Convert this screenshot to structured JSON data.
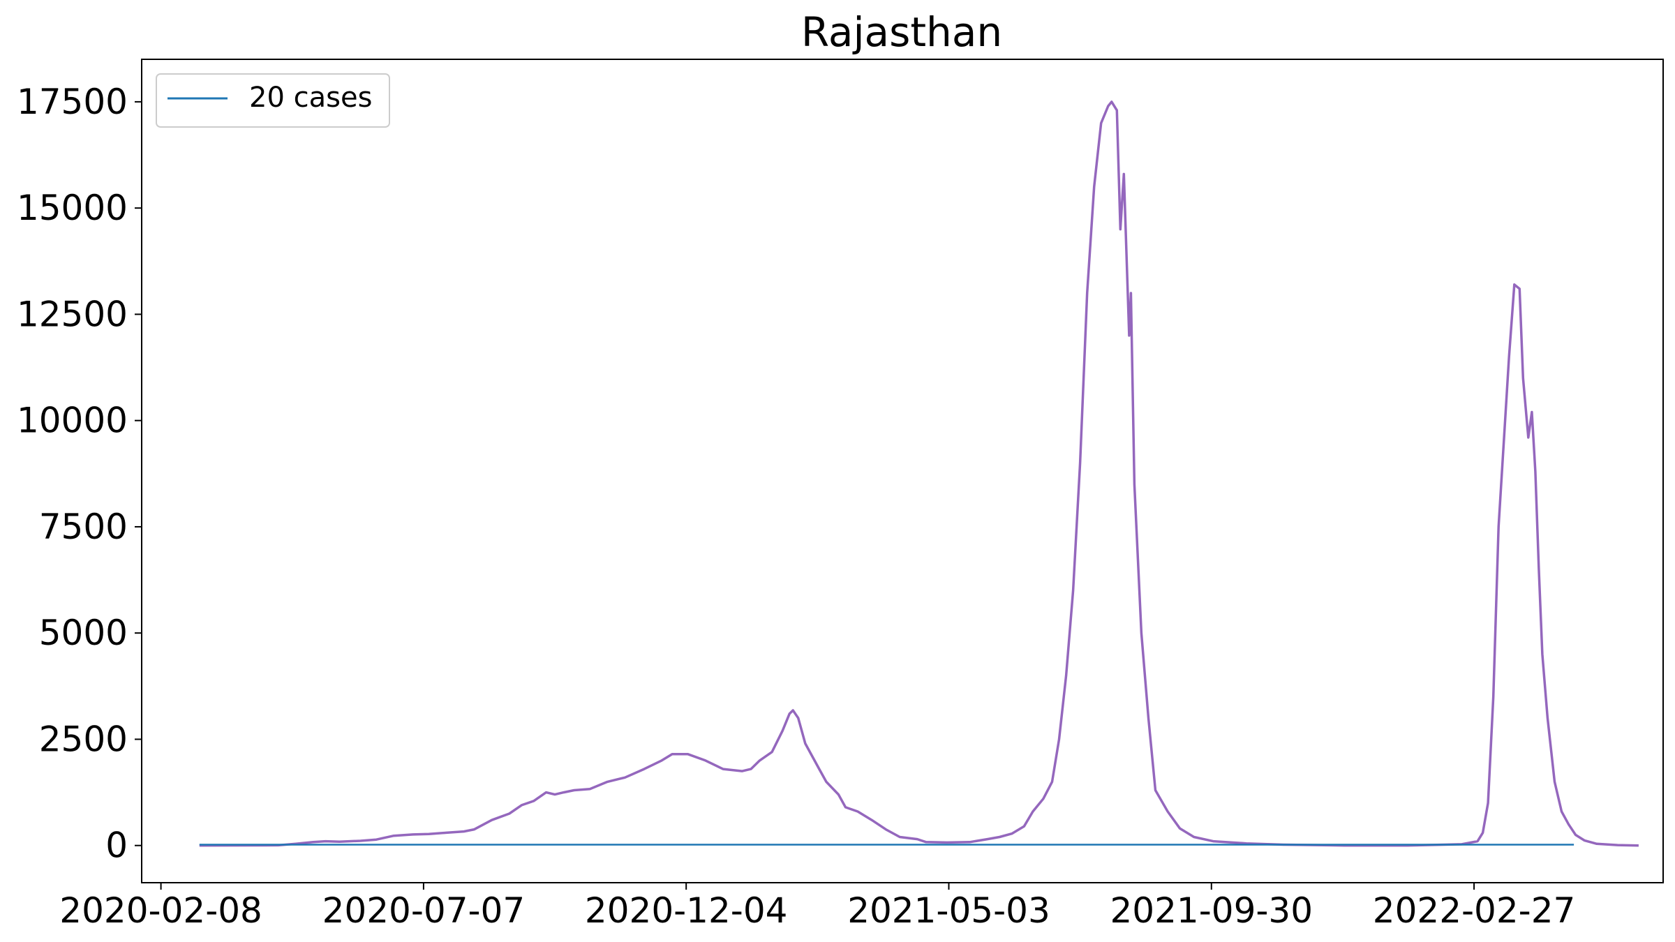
{
  "chart_data": {
    "type": "line",
    "title": "Rajasthan",
    "xlabel": "",
    "ylabel": "",
    "x_tick_labels": [
      "2020-02-08",
      "2020-07-07",
      "2020-12-04",
      "2021-05-03",
      "2021-09-30",
      "2022-02-27"
    ],
    "y_tick_labels": [
      "0",
      "2500",
      "5000",
      "7500",
      "10000",
      "12500",
      "15000",
      "17500"
    ],
    "y_ticks": [
      0,
      2500,
      5000,
      7500,
      10000,
      12500,
      15000,
      17500
    ],
    "xlim": [
      "2020-01-28",
      "2022-06-15"
    ],
    "ylim": [
      -875,
      18500
    ],
    "grid": false,
    "legend": {
      "placement": "top-left",
      "entries": [
        {
          "label": "20 cases",
          "color": "#1f77b4"
        }
      ]
    },
    "series": [
      {
        "name": "20 cases",
        "color": "#1f77b4",
        "points": [
          [
            "2020-03-01",
            20
          ],
          [
            "2022-04-25",
            20
          ]
        ]
      },
      {
        "color": "#9467bd",
        "points": [
          [
            "2020-03-01",
            0
          ],
          [
            "2020-04-15",
            5
          ],
          [
            "2020-04-25",
            40
          ],
          [
            "2020-05-05",
            80
          ],
          [
            "2020-05-12",
            100
          ],
          [
            "2020-05-20",
            90
          ],
          [
            "2020-06-01",
            110
          ],
          [
            "2020-06-10",
            140
          ],
          [
            "2020-06-20",
            230
          ],
          [
            "2020-07-01",
            260
          ],
          [
            "2020-07-10",
            270
          ],
          [
            "2020-07-20",
            300
          ],
          [
            "2020-07-30",
            330
          ],
          [
            "2020-08-05",
            380
          ],
          [
            "2020-08-15",
            600
          ],
          [
            "2020-08-25",
            750
          ],
          [
            "2020-09-01",
            950
          ],
          [
            "2020-09-08",
            1050
          ],
          [
            "2020-09-15",
            1250
          ],
          [
            "2020-09-20",
            1200
          ],
          [
            "2020-09-25",
            1250
          ],
          [
            "2020-10-01",
            1300
          ],
          [
            "2020-10-10",
            1330
          ],
          [
            "2020-10-20",
            1500
          ],
          [
            "2020-10-30",
            1600
          ],
          [
            "2020-11-10",
            1800
          ],
          [
            "2020-11-20",
            2000
          ],
          [
            "2020-11-26",
            2150
          ],
          [
            "2020-12-05",
            2150
          ],
          [
            "2020-12-15",
            2000
          ],
          [
            "2020-12-25",
            1800
          ],
          [
            "2021-01-05",
            1750
          ],
          [
            "2021-01-10",
            1800
          ],
          [
            "2021-01-15",
            2000
          ],
          [
            "2021-01-22",
            2200
          ],
          [
            "2021-01-28",
            2700
          ],
          [
            "2021-02-01",
            3100
          ],
          [
            "2021-02-03",
            3180
          ],
          [
            "2021-02-06",
            3000
          ],
          [
            "2021-02-10",
            2400
          ],
          [
            "2021-02-18",
            1800
          ],
          [
            "2021-02-22",
            1500
          ],
          [
            "2021-03-01",
            1200
          ],
          [
            "2021-03-05",
            900
          ],
          [
            "2021-03-12",
            800
          ],
          [
            "2021-03-20",
            600
          ],
          [
            "2021-03-28",
            380
          ],
          [
            "2021-04-05",
            200
          ],
          [
            "2021-04-15",
            150
          ],
          [
            "2021-04-20",
            80
          ],
          [
            "2021-05-02",
            70
          ],
          [
            "2021-05-15",
            80
          ],
          [
            "2021-05-25",
            150
          ],
          [
            "2021-06-01",
            200
          ],
          [
            "2021-06-08",
            280
          ],
          [
            "2021-06-15",
            450
          ],
          [
            "2021-06-20",
            800
          ],
          [
            "2021-06-26",
            1100
          ],
          [
            "2021-07-01",
            1500
          ],
          [
            "2021-07-05",
            2500
          ],
          [
            "2021-07-09",
            4000
          ],
          [
            "2021-07-13",
            6000
          ],
          [
            "2021-07-17",
            9000
          ],
          [
            "2021-07-21",
            13000
          ],
          [
            "2021-07-25",
            15500
          ],
          [
            "2021-07-29",
            17000
          ],
          [
            "2021-08-02",
            17400
          ],
          [
            "2021-08-04",
            17500
          ],
          [
            "2021-08-07",
            17300
          ],
          [
            "2021-08-09",
            14500
          ],
          [
            "2021-08-11",
            15800
          ],
          [
            "2021-08-14",
            12000
          ],
          [
            "2021-08-15",
            13000
          ],
          [
            "2021-08-17",
            8500
          ],
          [
            "2021-08-21",
            5000
          ],
          [
            "2021-08-25",
            3000
          ],
          [
            "2021-08-29",
            1300
          ],
          [
            "2021-09-05",
            800
          ],
          [
            "2021-09-12",
            400
          ],
          [
            "2021-09-20",
            200
          ],
          [
            "2021-10-01",
            100
          ],
          [
            "2021-10-20",
            50
          ],
          [
            "2021-11-10",
            20
          ],
          [
            "2021-12-15",
            0
          ],
          [
            "2022-01-20",
            0
          ],
          [
            "2022-02-10",
            20
          ],
          [
            "2022-02-20",
            30
          ],
          [
            "2022-03-01",
            100
          ],
          [
            "2022-03-04",
            300
          ],
          [
            "2022-03-07",
            1000
          ],
          [
            "2022-03-10",
            3500
          ],
          [
            "2022-03-13",
            7500
          ],
          [
            "2022-03-16",
            9500
          ],
          [
            "2022-03-19",
            11500
          ],
          [
            "2022-03-22",
            13200
          ],
          [
            "2022-03-25",
            13100
          ],
          [
            "2022-03-27",
            11000
          ],
          [
            "2022-03-30",
            9600
          ],
          [
            "2022-04-01",
            10200
          ],
          [
            "2022-04-03",
            8800
          ],
          [
            "2022-04-05",
            6500
          ],
          [
            "2022-04-07",
            4500
          ],
          [
            "2022-04-10",
            3000
          ],
          [
            "2022-04-14",
            1500
          ],
          [
            "2022-04-18",
            800
          ],
          [
            "2022-04-22",
            500
          ],
          [
            "2022-04-26",
            250
          ],
          [
            "2022-05-01",
            120
          ],
          [
            "2022-05-08",
            40
          ],
          [
            "2022-05-20",
            10
          ],
          [
            "2022-06-01",
            0
          ]
        ]
      }
    ]
  }
}
